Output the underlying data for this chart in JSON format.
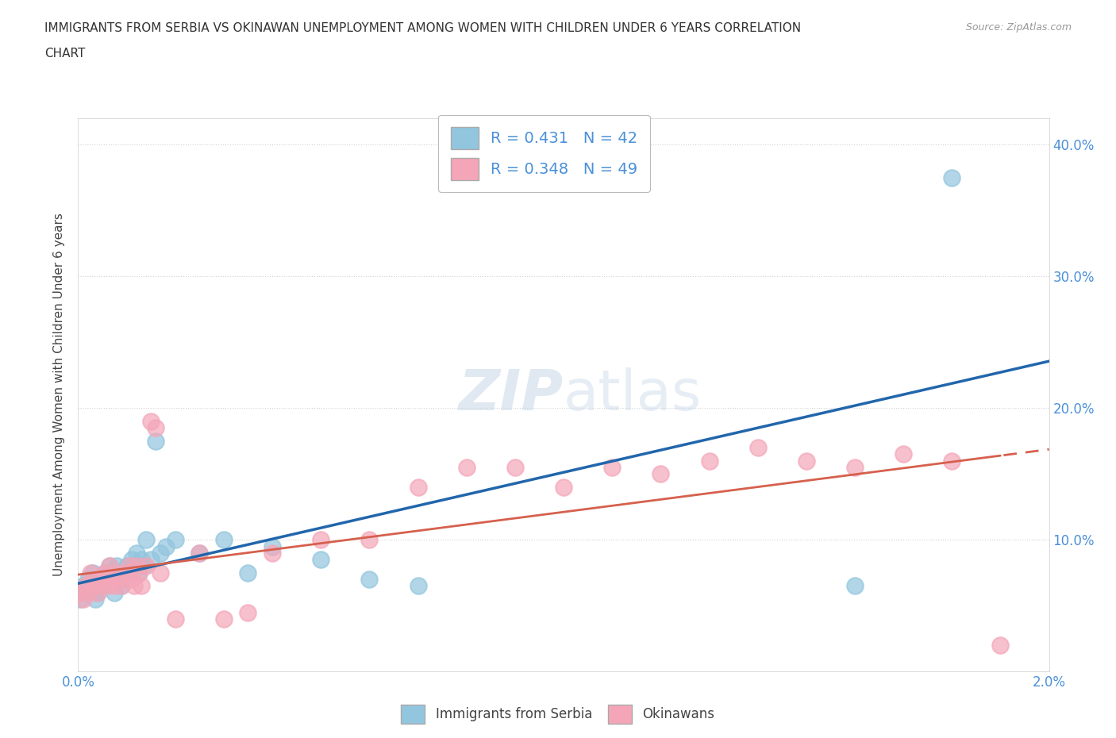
{
  "title_line1": "IMMIGRANTS FROM SERBIA VS OKINAWAN UNEMPLOYMENT AMONG WOMEN WITH CHILDREN UNDER 6 YEARS CORRELATION",
  "title_line2": "CHART",
  "source_text": "Source: ZipAtlas.com",
  "ylabel": "Unemployment Among Women with Children Under 6 years",
  "xlim": [
    0.0,
    0.02
  ],
  "ylim": [
    0.0,
    0.42
  ],
  "x_ticks": [
    0.0,
    0.002,
    0.004,
    0.006,
    0.008,
    0.01,
    0.012,
    0.014,
    0.016,
    0.018,
    0.02
  ],
  "x_tick_labels": [
    "0.0%",
    "",
    "",
    "",
    "",
    "",
    "",
    "",
    "",
    "",
    "2.0%"
  ],
  "y_ticks": [
    0.0,
    0.1,
    0.2,
    0.3,
    0.4
  ],
  "y_tick_labels": [
    "",
    "10.0%",
    "20.0%",
    "30.0%",
    "40.0%"
  ],
  "R_serbia": 0.431,
  "N_serbia": 42,
  "R_okinawan": 0.348,
  "N_okinawan": 49,
  "serbia_color": "#92c5de",
  "okinawan_color": "#f4a6b8",
  "serbia_line_color": "#2166ac",
  "okinawan_line_color": "#d6604d",
  "watermark_zip": "ZIP",
  "watermark_atlas": "atlas",
  "background_color": "#ffffff",
  "grid_color": "#cccccc",
  "serbia_scatter_x": [
    5e-05,
    0.0001,
    0.00015,
    0.0002,
    0.00025,
    0.0003,
    0.00035,
    0.0004,
    0.00045,
    0.0005,
    0.00055,
    0.0006,
    0.00065,
    0.0007,
    0.00075,
    0.0008,
    0.00085,
    0.0009,
    0.00095,
    0.001,
    0.00105,
    0.0011,
    0.00115,
    0.0012,
    0.00125,
    0.0013,
    0.00135,
    0.0014,
    0.0015,
    0.0016,
    0.0017,
    0.0018,
    0.002,
    0.0025,
    0.003,
    0.0035,
    0.004,
    0.005,
    0.006,
    0.007,
    0.016,
    0.018
  ],
  "serbia_scatter_y": [
    0.055,
    0.065,
    0.06,
    0.07,
    0.065,
    0.075,
    0.055,
    0.06,
    0.07,
    0.065,
    0.075,
    0.07,
    0.08,
    0.075,
    0.06,
    0.08,
    0.07,
    0.065,
    0.07,
    0.08,
    0.075,
    0.085,
    0.08,
    0.09,
    0.075,
    0.085,
    0.08,
    0.1,
    0.085,
    0.175,
    0.09,
    0.095,
    0.1,
    0.09,
    0.1,
    0.075,
    0.095,
    0.085,
    0.07,
    0.065,
    0.065,
    0.375
  ],
  "okinawan_scatter_x": [
    5e-05,
    0.0001,
    0.00015,
    0.0002,
    0.00025,
    0.0003,
    0.00035,
    0.0004,
    0.00045,
    0.0005,
    0.00055,
    0.0006,
    0.00065,
    0.0007,
    0.00075,
    0.0008,
    0.00085,
    0.0009,
    0.001,
    0.00105,
    0.0011,
    0.00115,
    0.0012,
    0.00125,
    0.0013,
    0.0014,
    0.0015,
    0.0016,
    0.0017,
    0.002,
    0.0025,
    0.003,
    0.0035,
    0.004,
    0.005,
    0.006,
    0.007,
    0.008,
    0.009,
    0.01,
    0.011,
    0.012,
    0.013,
    0.014,
    0.015,
    0.016,
    0.017,
    0.018,
    0.019
  ],
  "okinawan_scatter_y": [
    0.06,
    0.055,
    0.065,
    0.06,
    0.075,
    0.065,
    0.07,
    0.06,
    0.065,
    0.07,
    0.075,
    0.065,
    0.08,
    0.07,
    0.065,
    0.075,
    0.07,
    0.065,
    0.075,
    0.08,
    0.07,
    0.065,
    0.08,
    0.075,
    0.065,
    0.08,
    0.19,
    0.185,
    0.075,
    0.04,
    0.09,
    0.04,
    0.045,
    0.09,
    0.1,
    0.1,
    0.14,
    0.155,
    0.155,
    0.14,
    0.155,
    0.15,
    0.16,
    0.17,
    0.16,
    0.155,
    0.165,
    0.16,
    0.02
  ]
}
